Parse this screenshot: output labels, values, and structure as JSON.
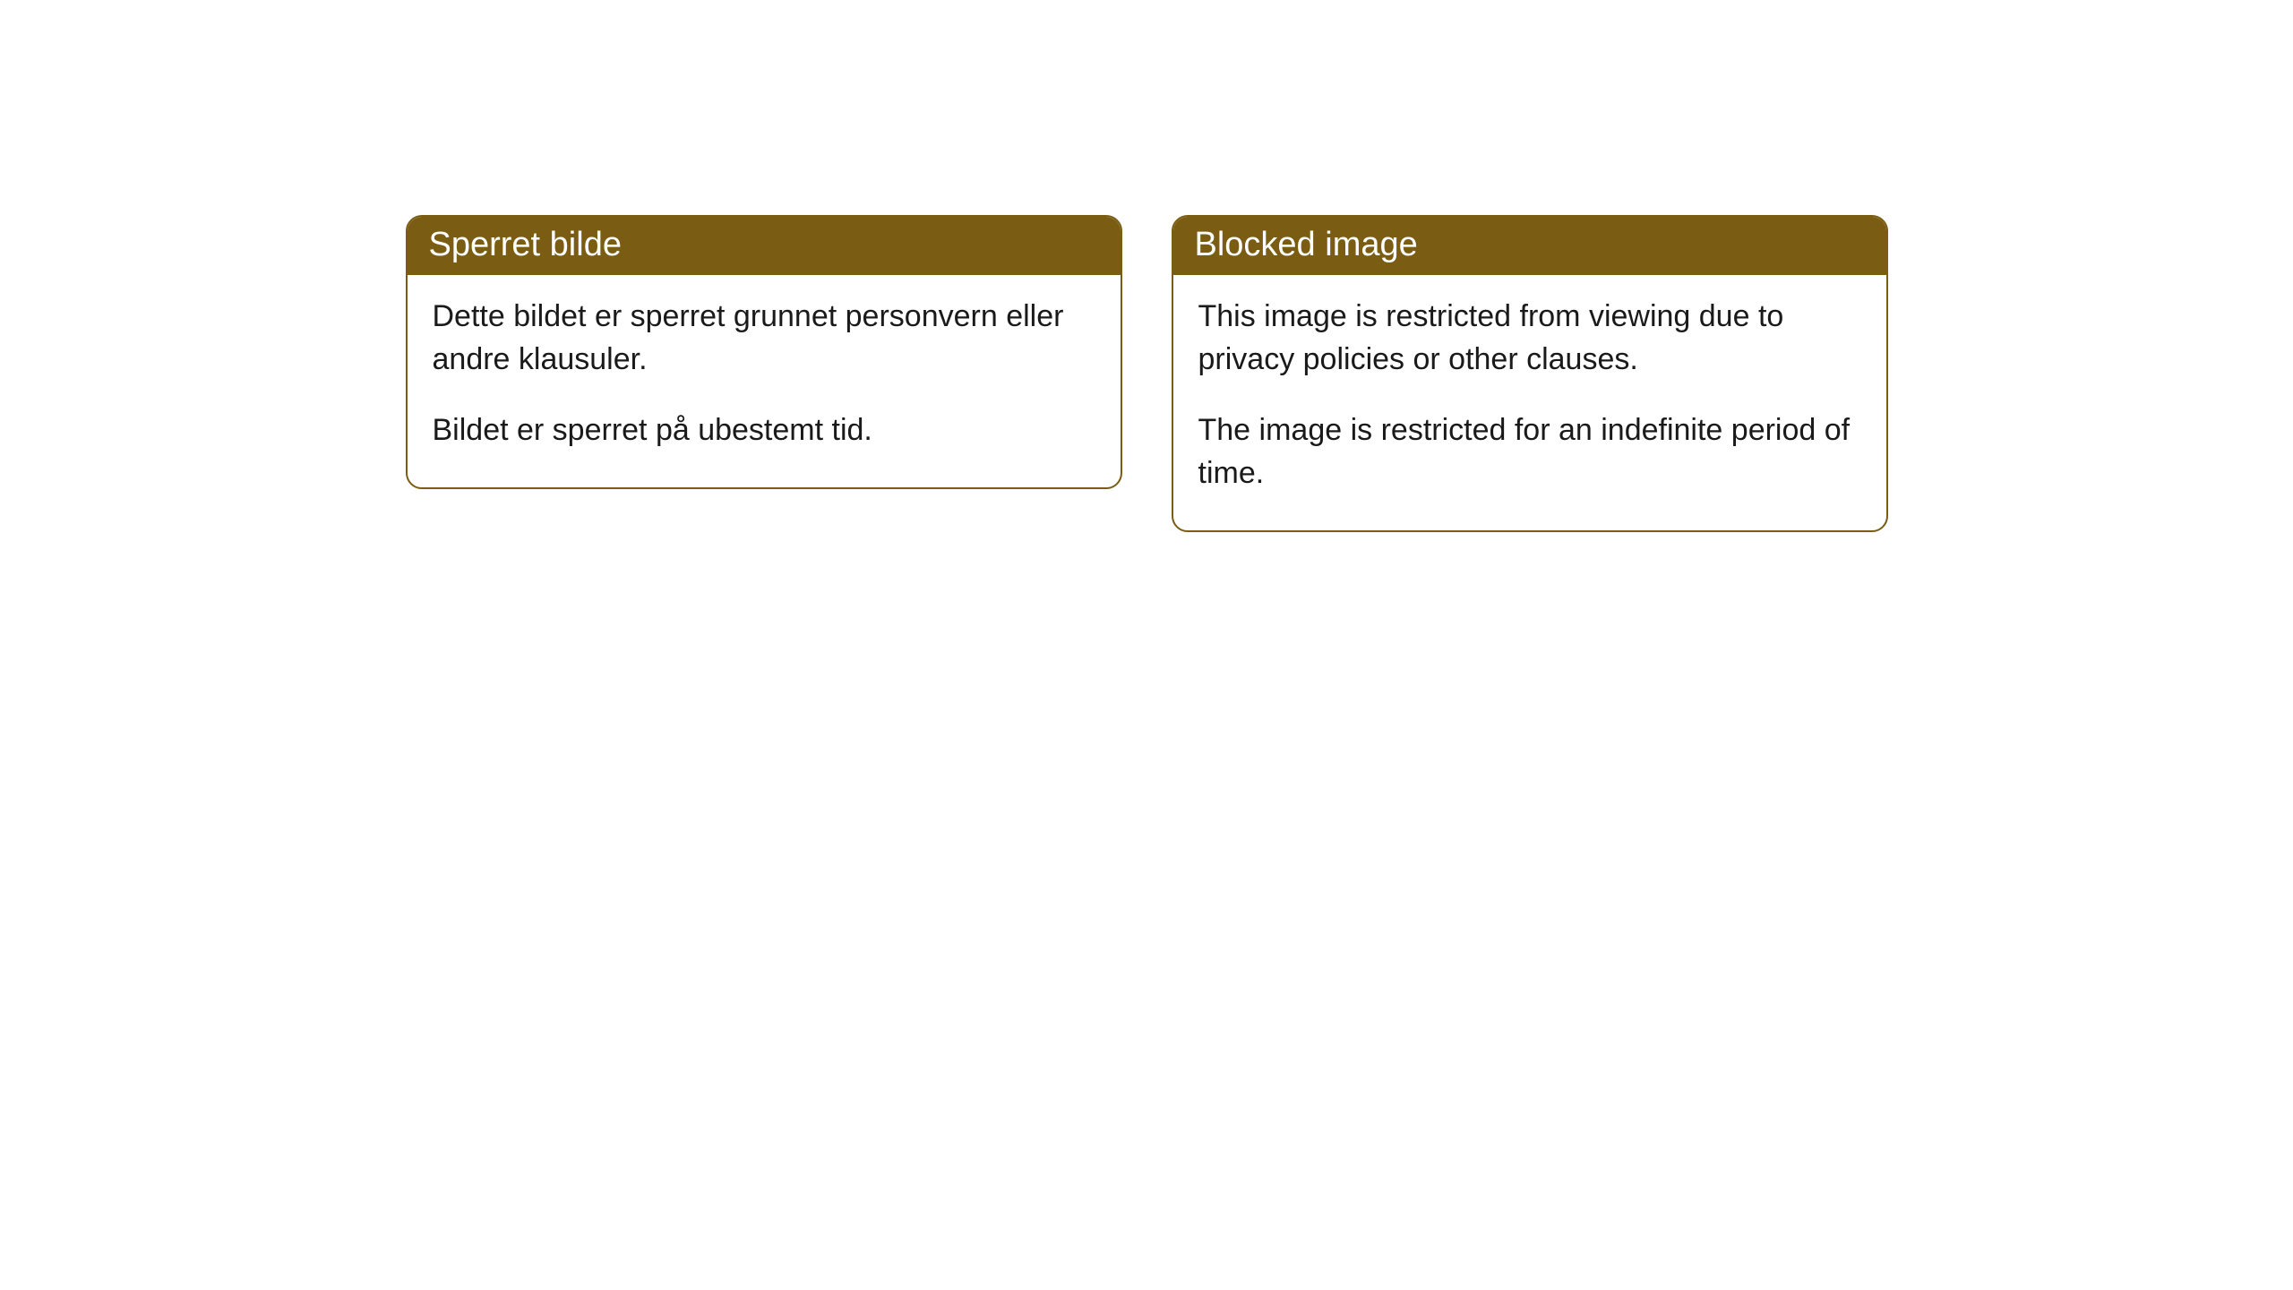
{
  "cards": [
    {
      "title": "Sperret bilde",
      "paragraph1": "Dette bildet er sperret grunnet personvern eller andre klausuler.",
      "paragraph2": "Bildet er sperret på ubestemt tid."
    },
    {
      "title": "Blocked image",
      "paragraph1": "This image is restricted from viewing due to privacy policies or other clauses.",
      "paragraph2": "The image is restricted for an indefinite period of time."
    }
  ],
  "colors": {
    "header_bg": "#7a5d13",
    "header_text": "#ffffff",
    "body_text": "#1a1a1a",
    "border": "#7a5d13",
    "page_bg": "#ffffff"
  }
}
